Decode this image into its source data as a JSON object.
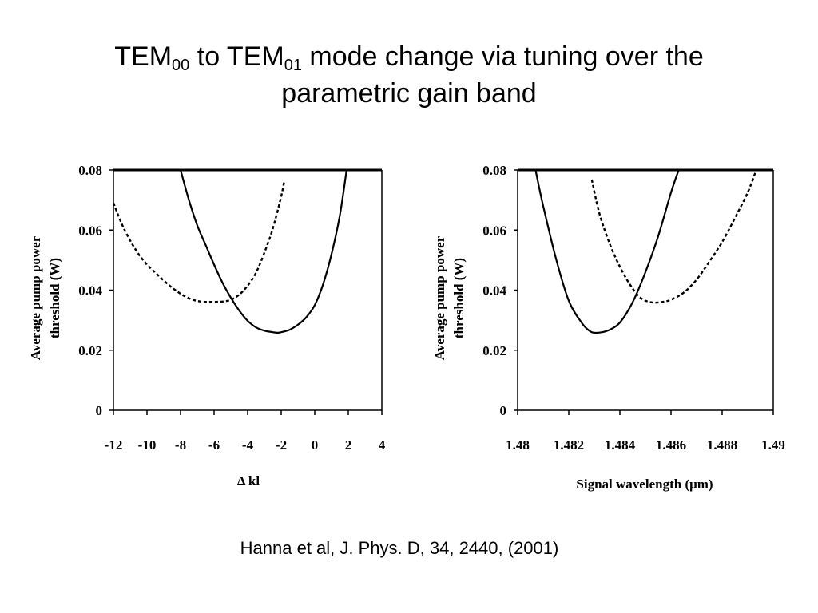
{
  "slide": {
    "title_part1": "TEM",
    "title_sub1": "00",
    "title_part2": " to TEM",
    "title_sub2": "01",
    "title_part3": " mode change via tuning over the",
    "title_line2": "parametric gain band",
    "citation": "Hanna et al, J. Phys. D, 34, 2440, (2001)"
  },
  "chart_data": [
    {
      "type": "line",
      "title": "",
      "xlabel": "Δ kl",
      "ylabel_line1": "Average  pump power",
      "ylabel_line2": "threshold (W)",
      "xlim": [
        -12,
        4
      ],
      "ylim": [
        0,
        0.08
      ],
      "xticks": [
        -12,
        -10,
        -8,
        -6,
        -4,
        -2,
        0,
        2,
        4
      ],
      "xtick_labels": [
        "-12",
        "-10",
        "-8",
        "-6",
        "-4",
        "-2",
        "0",
        "2",
        "4"
      ],
      "yticks": [
        0,
        0.02,
        0.04,
        0.06,
        0.08
      ],
      "ytick_labels": [
        "0",
        "0.02",
        "0.04",
        "0.06",
        "0.08"
      ],
      "grid": false,
      "legend": "none",
      "series": [
        {
          "style": "solid",
          "x": [
            -8.0,
            -7.5,
            -7.0,
            -6.5,
            -6.0,
            -5.5,
            -5.0,
            -4.5,
            -4.0,
            -3.5,
            -3.0,
            -2.5,
            -2.2,
            -2.0,
            -1.5,
            -1.0,
            -0.5,
            0.0,
            0.5,
            1.0,
            1.5,
            1.9
          ],
          "y": [
            0.08,
            0.07,
            0.0615,
            0.055,
            0.0485,
            0.0425,
            0.0375,
            0.0332,
            0.0298,
            0.0276,
            0.0265,
            0.026,
            0.0258,
            0.026,
            0.0268,
            0.0285,
            0.031,
            0.035,
            0.042,
            0.052,
            0.065,
            0.08
          ]
        },
        {
          "style": "dashed",
          "x": [
            -12.0,
            -11.5,
            -11.0,
            -10.5,
            -10.0,
            -9.5,
            -9.0,
            -8.5,
            -8.0,
            -7.5,
            -7.0,
            -6.5,
            -6.0,
            -5.5,
            -5.0,
            -4.5,
            -4.0,
            -3.5,
            -3.0,
            -2.5,
            -2.0,
            -1.8
          ],
          "y": [
            0.069,
            0.062,
            0.0565,
            0.052,
            0.0485,
            0.0458,
            0.0432,
            0.0408,
            0.0388,
            0.0373,
            0.0364,
            0.0361,
            0.0361,
            0.0362,
            0.0368,
            0.0385,
            0.0415,
            0.0458,
            0.0525,
            0.0605,
            0.0712,
            0.0768
          ]
        }
      ]
    },
    {
      "type": "line",
      "title": "",
      "xlabel": "Signal wavelength (μm)",
      "ylabel_line1": "Average  pump power",
      "ylabel_line2": "threshold (W)",
      "xlim": [
        1.48,
        1.49
      ],
      "ylim": [
        0,
        0.08
      ],
      "xticks": [
        1.48,
        1.482,
        1.484,
        1.486,
        1.488,
        1.49
      ],
      "xtick_labels": [
        "1.48",
        "1.482",
        "1.484",
        "1.486",
        "1.488",
        "1.49"
      ],
      "yticks": [
        0,
        0.02,
        0.04,
        0.06,
        0.08
      ],
      "ytick_labels": [
        "0",
        "0.02",
        "0.04",
        "0.06",
        "0.08"
      ],
      "grid": false,
      "legend": "none",
      "series": [
        {
          "style": "solid",
          "x": [
            1.4807,
            1.481,
            1.4815,
            1.482,
            1.4825,
            1.4828,
            1.483,
            1.4833,
            1.4836,
            1.484,
            1.4845,
            1.485,
            1.4855,
            1.486,
            1.4863
          ],
          "y": [
            0.08,
            0.068,
            0.0505,
            0.0365,
            0.0292,
            0.0265,
            0.0258,
            0.026,
            0.0268,
            0.0292,
            0.036,
            0.046,
            0.058,
            0.0725,
            0.08
          ]
        },
        {
          "style": "dashed",
          "x": [
            1.4829,
            1.4832,
            1.4836,
            1.484,
            1.4844,
            1.4848,
            1.4852,
            1.4856,
            1.486,
            1.4865,
            1.487,
            1.4875,
            1.488,
            1.4885,
            1.489,
            1.4893
          ],
          "y": [
            0.0768,
            0.0655,
            0.0555,
            0.0478,
            0.0418,
            0.0375,
            0.036,
            0.036,
            0.0368,
            0.0392,
            0.0435,
            0.0495,
            0.056,
            0.064,
            0.0725,
            0.0792
          ]
        }
      ]
    }
  ]
}
